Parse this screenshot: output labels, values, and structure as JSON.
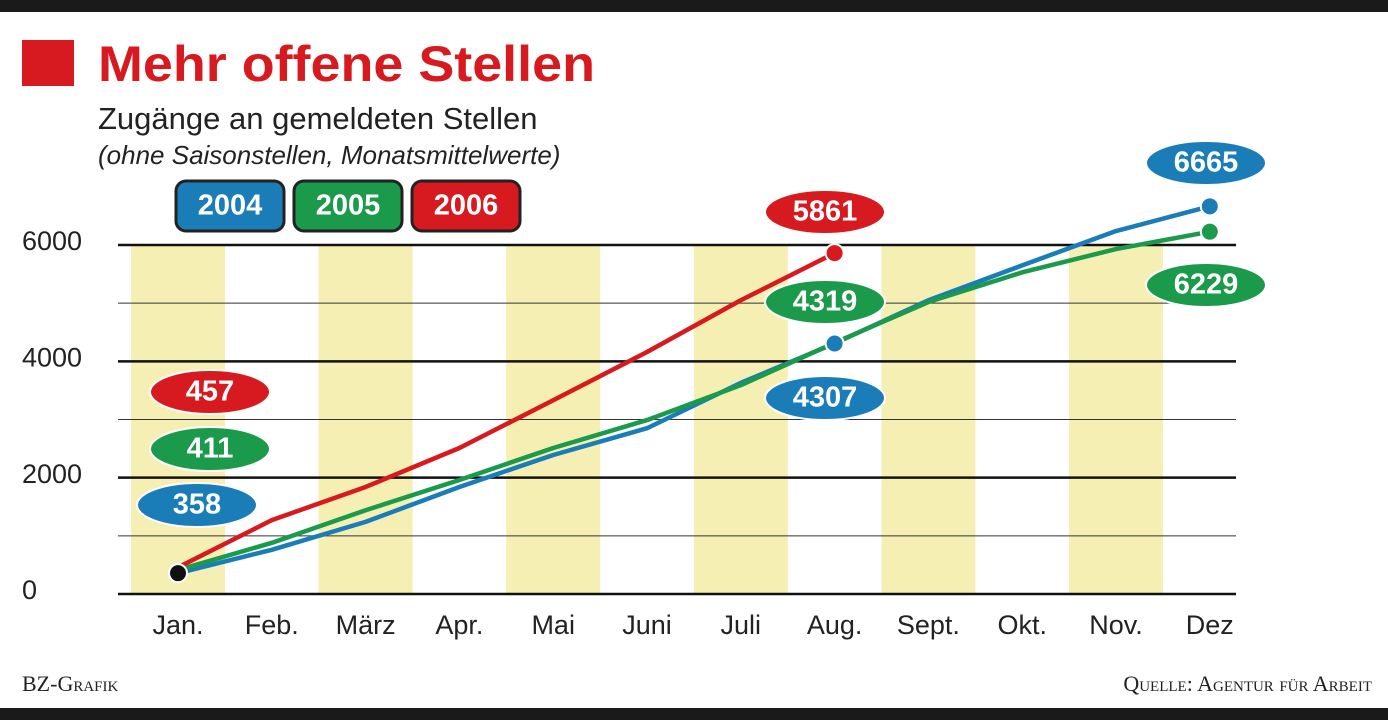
{
  "chart_data": {
    "type": "line",
    "title": "Mehr offene Stellen",
    "subtitle": "Zugänge an gemeldeten Stellen",
    "note": "(ohne Saisonstellen, Monatsmittelwerte)",
    "source": "Quelle: Agentur für Arbeit",
    "credit": "BZ-Grafik",
    "categories": [
      "Jan.",
      "Feb.",
      "März",
      "Apr.",
      "Mai",
      "Juni",
      "Juli",
      "Aug.",
      "Sept.",
      "Okt.",
      "Nov.",
      "Dez"
    ],
    "series": [
      {
        "name": "2004",
        "color": "#1a7db8",
        "values": [
          358,
          760,
          1240,
          1840,
          2390,
          2850,
          3630,
          4307,
          5050,
          5650,
          6240,
          6665
        ]
      },
      {
        "name": "2005",
        "color": "#1a9a4a",
        "values": [
          411,
          880,
          1440,
          1960,
          2510,
          2990,
          3590,
          4319,
          5020,
          5530,
          5930,
          6229
        ]
      },
      {
        "name": "2006",
        "color": "#d71920",
        "values": [
          457,
          1270,
          1840,
          2510,
          3330,
          4160,
          5050,
          5861,
          null,
          null,
          null,
          null
        ]
      }
    ],
    "ylim": [
      0,
      6000
    ],
    "yticks": [
      0,
      2000,
      4000,
      6000
    ],
    "minor_yticks": [
      1000,
      3000,
      5000
    ],
    "grid": true
  }
}
